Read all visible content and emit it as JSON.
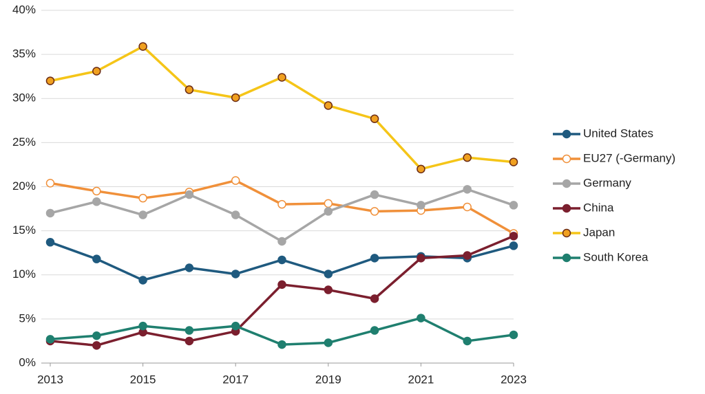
{
  "chart_data": {
    "type": "line",
    "x": [
      2013,
      2014,
      2015,
      2016,
      2017,
      2018,
      2019,
      2020,
      2021,
      2022,
      2023
    ],
    "xlim": [
      2013,
      2023
    ],
    "xticks": [
      2013,
      2015,
      2017,
      2019,
      2021,
      2023
    ],
    "ylim": [
      0,
      40
    ],
    "yticks": [
      {
        "value": 0,
        "label": "0%"
      },
      {
        "value": 5,
        "label": "5%"
      },
      {
        "value": 10,
        "label": "10%"
      },
      {
        "value": 15,
        "label": "15%"
      },
      {
        "value": 20,
        "label": "20%"
      },
      {
        "value": 25,
        "label": "25%"
      },
      {
        "value": 30,
        "label": "30%"
      },
      {
        "value": 35,
        "label": "35%"
      },
      {
        "value": 40,
        "label": "40%"
      }
    ],
    "grid": true,
    "legend": "right",
    "series": [
      {
        "name": "United States",
        "color": "#1f5a7f",
        "marker_fill": "#1f5a7f",
        "marker_edge": "#1f5a7f",
        "values": [
          13.7,
          11.8,
          9.4,
          10.8,
          10.1,
          11.7,
          10.1,
          11.9,
          12.1,
          11.9,
          13.3
        ]
      },
      {
        "name": "EU27 (-Germany)",
        "color": "#f0903a",
        "marker_fill": "#ffffff",
        "marker_edge": "#f0903a",
        "values": [
          20.4,
          19.5,
          18.7,
          19.4,
          20.7,
          18.0,
          18.1,
          17.2,
          17.3,
          17.7,
          14.7
        ]
      },
      {
        "name": "Germany",
        "color": "#a6a6a6",
        "marker_fill": "#a6a6a6",
        "marker_edge": "#a6a6a6",
        "values": [
          17.0,
          18.3,
          16.8,
          19.1,
          16.8,
          13.8,
          17.2,
          19.1,
          17.9,
          19.7,
          17.9
        ]
      },
      {
        "name": "China",
        "color": "#7b1f2e",
        "marker_fill": "#7b1f2e",
        "marker_edge": "#7b1f2e",
        "values": [
          2.5,
          2.0,
          3.5,
          2.5,
          3.6,
          8.9,
          8.3,
          7.3,
          11.9,
          12.2,
          14.4
        ]
      },
      {
        "name": "Japan",
        "color": "#f5c518",
        "marker_fill": "#f0a020",
        "marker_edge": "#6b2b14",
        "values": [
          32.0,
          33.1,
          35.9,
          31.0,
          30.1,
          32.4,
          29.2,
          27.7,
          22.0,
          23.3,
          22.8
        ]
      },
      {
        "name": "South Korea",
        "color": "#1f7f6f",
        "marker_fill": "#1f7f6f",
        "marker_edge": "#1f7f6f",
        "values": [
          2.7,
          3.1,
          4.2,
          3.7,
          4.2,
          2.1,
          2.3,
          3.7,
          5.1,
          2.5,
          3.2
        ]
      }
    ]
  }
}
